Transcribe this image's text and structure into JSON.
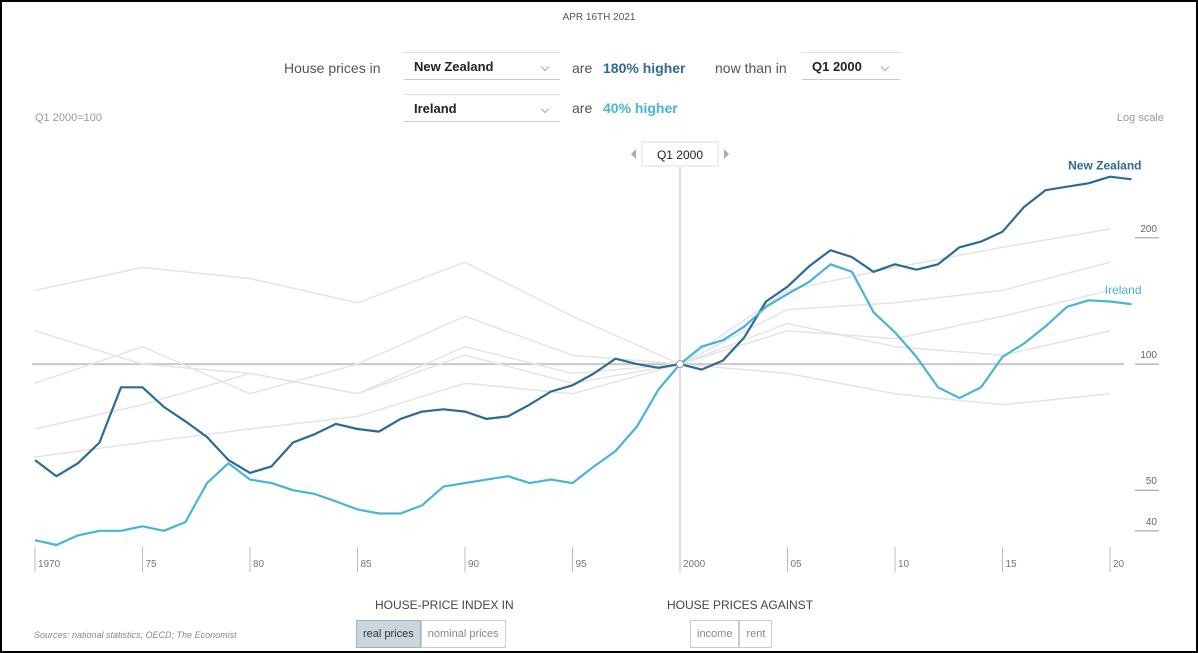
{
  "header": {
    "date": "APR 16TH 2021"
  },
  "controls": {
    "lead": "House prices in",
    "country1": "New Zealand",
    "are1": "are",
    "change1": "180% higher",
    "than": "now than in",
    "period": "Q1 2000",
    "country2": "Ireland",
    "are2": "are",
    "change2": "40% higher"
  },
  "chart_data": {
    "type": "line",
    "index_note": "Q1 2000=100",
    "scale_note": "Log scale",
    "log_scale": true,
    "baseline": 100,
    "marker": {
      "value": 2000,
      "label": "Q1 2000"
    },
    "x": [
      1970,
      1971,
      1972,
      1973,
      1974,
      1975,
      1976,
      1977,
      1978,
      1979,
      1980,
      1981,
      1982,
      1983,
      1984,
      1985,
      1986,
      1987,
      1988,
      1989,
      1990,
      1991,
      1992,
      1993,
      1994,
      1995,
      1996,
      1997,
      1998,
      1999,
      2000,
      2001,
      2002,
      2003,
      2004,
      2005,
      2006,
      2007,
      2008,
      2009,
      2010,
      2011,
      2012,
      2013,
      2014,
      2015,
      2016,
      2017,
      2018,
      2019,
      2020,
      2021
    ],
    "series": [
      {
        "name": "New Zealand",
        "color": "#2d6a96",
        "values": [
          59,
          54,
          58,
          65,
          88,
          88,
          79,
          73,
          67,
          59,
          55,
          57,
          65,
          68,
          72,
          70,
          69,
          74,
          77,
          78,
          77,
          74,
          75,
          80,
          86,
          89,
          95,
          103,
          100,
          98,
          100,
          97,
          102,
          116,
          141,
          153,
          171,
          187,
          180,
          166,
          173,
          168,
          173,
          190,
          196,
          207,
          237,
          260,
          265,
          270,
          280,
          276
        ]
      },
      {
        "name": "Ireland",
        "color": "#47b5d3",
        "values": [
          38,
          37,
          39,
          40,
          40,
          41,
          40,
          42,
          52,
          58,
          53,
          52,
          50,
          49,
          47,
          45,
          44,
          44,
          46,
          51,
          52,
          53,
          54,
          52,
          53,
          52,
          57,
          62,
          71,
          87,
          100,
          110,
          114,
          123,
          137,
          147,
          157,
          173,
          166,
          133,
          119,
          104,
          88,
          83,
          88,
          104,
          112,
          123,
          137,
          142,
          141,
          139
        ]
      }
    ],
    "background_series": [
      {
        "color": "#e4e4e4",
        "x": [
          1970,
          1975,
          1980,
          1985,
          1990,
          1995,
          2000,
          2005,
          2010,
          2015,
          2020
        ],
        "values": [
          150,
          170,
          160,
          140,
          175,
          130,
          100,
          150,
          170,
          190,
          210
        ]
      },
      {
        "color": "#e4e4e4",
        "x": [
          1970,
          1975,
          1980,
          1985,
          1990,
          1995,
          2000,
          2005,
          2010,
          2015,
          2020
        ],
        "values": [
          70,
          80,
          95,
          85,
          110,
          95,
          100,
          135,
          140,
          150,
          175
        ]
      },
      {
        "color": "#e4e4e4",
        "x": [
          1970,
          1975,
          1980,
          1985,
          1990,
          1995,
          2000,
          2005,
          2010,
          2015,
          2020
        ],
        "values": [
          120,
          100,
          95,
          85,
          105,
          90,
          100,
          120,
          115,
          130,
          150
        ]
      },
      {
        "color": "#e4e4e4",
        "x": [
          1970,
          1975,
          1980,
          1985,
          1990,
          1995,
          2000,
          2005,
          2010,
          2015,
          2020
        ],
        "values": [
          60,
          65,
          70,
          75,
          90,
          85,
          100,
          125,
          110,
          105,
          120
        ]
      },
      {
        "color": "#e4e4e4",
        "x": [
          1970,
          1975,
          1980,
          1985,
          1990,
          1995,
          2000,
          2005,
          2010,
          2015,
          2020
        ],
        "values": [
          90,
          110,
          85,
          100,
          130,
          105,
          100,
          95,
          85,
          80,
          85
        ]
      }
    ],
    "xlim": [
      1970,
      2021.5
    ],
    "ylim": [
      36.6,
      312
    ],
    "xticks": [
      1970,
      {
        "value": 1975,
        "label": "75"
      },
      {
        "value": 1980,
        "label": "80"
      },
      {
        "value": 1985,
        "label": "85"
      },
      {
        "value": 1990,
        "label": "90"
      },
      {
        "value": 1995,
        "label": "95"
      },
      2000,
      {
        "value": 2005,
        "label": "05"
      },
      {
        "value": 2010,
        "label": "10"
      },
      {
        "value": 2015,
        "label": "15"
      },
      {
        "value": 2020,
        "label": "20"
      }
    ],
    "yticks": [
      40,
      50,
      100,
      200
    ]
  },
  "footer": {
    "index_caption": "HOUSE-PRICE INDEX IN",
    "index_options": [
      "real prices",
      "nominal prices"
    ],
    "against_caption": "HOUSE PRICES AGAINST",
    "against_options": [
      "income",
      "rent"
    ],
    "source": "Sources: national statistics; OECD; The Economist"
  }
}
